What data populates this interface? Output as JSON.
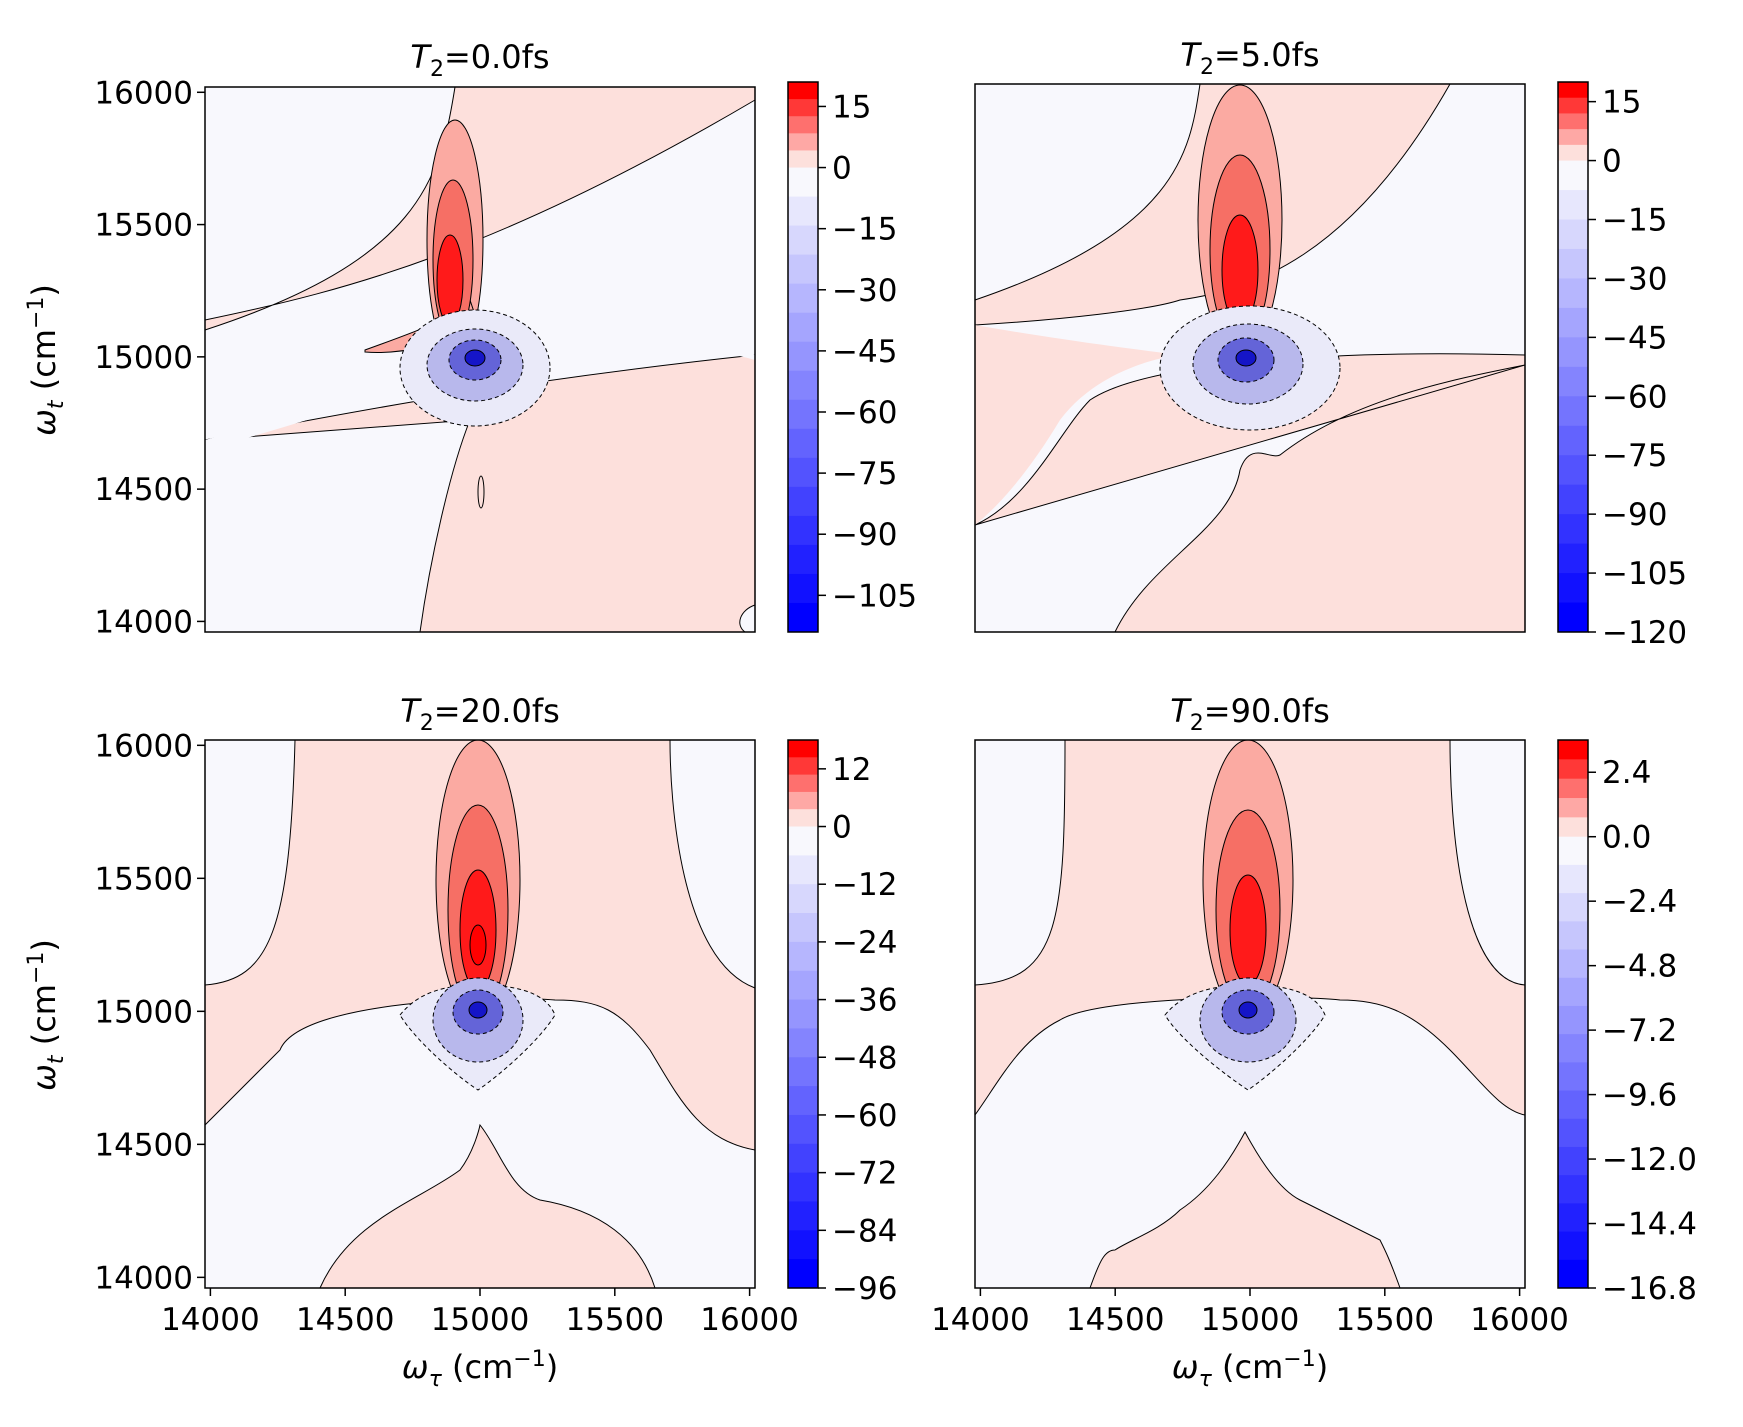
{
  "chart_data": {
    "type": "contour",
    "xlabel_sym": "ω",
    "xlabel_sub": "τ",
    "xlabel_unit_pre": " (cm",
    "xlabel_unit_exp": "−1",
    "xlabel_unit_post": ")",
    "ylabel_sym": "ω",
    "ylabel_sub": "t",
    "ylabel_unit_pre": " (cm",
    "ylabel_unit_exp": "−1",
    "ylabel_unit_post": ")",
    "xlim": [
      13980,
      16020
    ],
    "ylim": [
      13960,
      16020
    ],
    "xticks": [
      "14000",
      "14500",
      "15000",
      "15500",
      "16000"
    ],
    "yticks": [
      "14000",
      "14500",
      "15000",
      "15500",
      "16000"
    ],
    "xtick_values": [
      14000,
      14500,
      15000,
      15500,
      16000
    ],
    "ytick_values": [
      14000,
      14500,
      15000,
      15500,
      16000
    ],
    "panels": [
      {
        "title_sym": "T",
        "title_sub": "2",
        "title_rest": "=0.0fs",
        "T2_fs": 0.0,
        "colorbar": {
          "min": -114,
          "max": 21,
          "ticks": [
            15,
            0,
            -15,
            -30,
            -45,
            -60,
            -75,
            -90,
            -105
          ],
          "tick_labels": [
            "15",
            "0",
            "−15",
            "−30",
            "−45",
            "−60",
            "−75",
            "−90",
            "−105"
          ]
        }
      },
      {
        "title_sym": "T",
        "title_sub": "2",
        "title_rest": "=5.0fs",
        "T2_fs": 5.0,
        "colorbar": {
          "min": -120,
          "max": 20,
          "ticks": [
            15,
            0,
            -15,
            -30,
            -45,
            -60,
            -75,
            -90,
            -105,
            -120
          ],
          "tick_labels": [
            "15",
            "0",
            "−15",
            "−30",
            "−45",
            "−60",
            "−75",
            "−90",
            "−105",
            "−120"
          ]
        }
      },
      {
        "title_sym": "T",
        "title_sub": "2",
        "title_rest": "=20.0fs",
        "T2_fs": 20.0,
        "colorbar": {
          "min": -96,
          "max": 18,
          "ticks": [
            12,
            0,
            -12,
            -24,
            -36,
            -48,
            -60,
            -72,
            -84,
            -96
          ],
          "tick_labels": [
            "12",
            "0",
            "−12",
            "−24",
            "−36",
            "−48",
            "−60",
            "−72",
            "−84",
            "−96"
          ]
        }
      },
      {
        "title_sym": "T",
        "title_sub": "2",
        "title_rest": "=90.0fs",
        "T2_fs": 90.0,
        "colorbar": {
          "min": -16.8,
          "max": 3.6,
          "ticks": [
            2.4,
            0.0,
            -2.4,
            -4.8,
            -7.2,
            -9.6,
            -12.0,
            -14.4,
            -16.8
          ],
          "tick_labels": [
            "2.4",
            "0.0",
            "−2.4",
            "−4.8",
            "−7.2",
            "−9.6",
            "−12.0",
            "−14.4",
            "−16.8"
          ]
        }
      }
    ],
    "colors": {
      "positive_max": "#ff0000",
      "negative_max": "#0000ff",
      "near_zero_pos": "#fde0dc",
      "near_zero_neg": "#f8f8fd"
    }
  }
}
